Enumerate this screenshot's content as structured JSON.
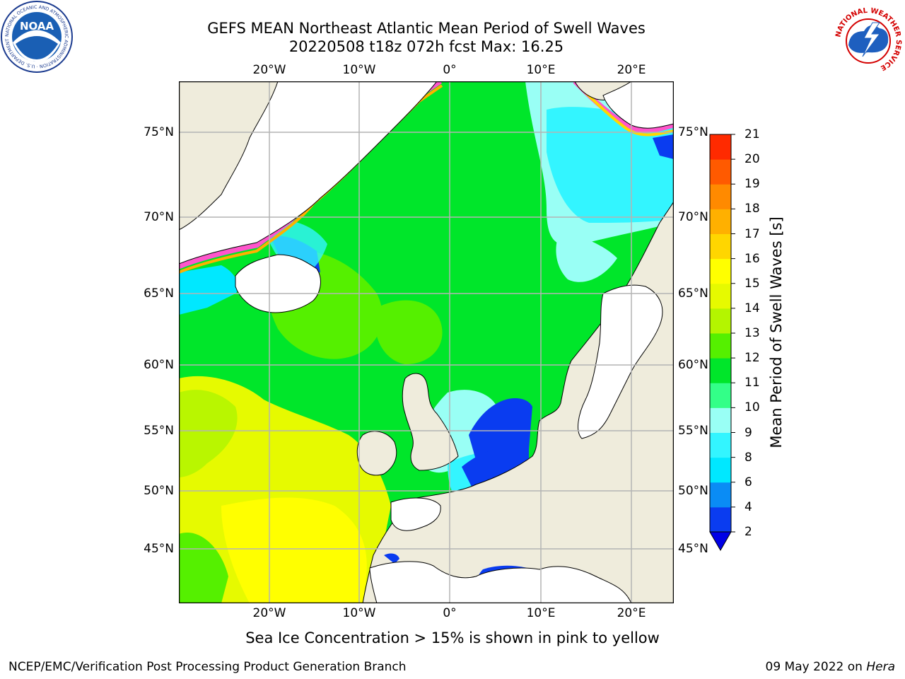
{
  "title_line1": "GEFS MEAN Northeast Atlantic Mean Period of Swell Waves",
  "title_line2": "20220508 t18z 072h fcst   Max: 16.25",
  "lon_labels": [
    "20°W",
    "10°W",
    "0°",
    "10°E",
    "20°E"
  ],
  "lat_labels": [
    "75°N",
    "70°N",
    "65°N",
    "60°N",
    "55°N",
    "50°N",
    "45°N"
  ],
  "colorbar": {
    "label": "Mean Period of Swell Waves [s]",
    "ticks": [
      "2",
      "4",
      "6",
      "8",
      "9",
      "10",
      "11",
      "12",
      "13",
      "14",
      "15",
      "16",
      "17",
      "18",
      "19",
      "20",
      "21"
    ],
    "colors": [
      "#0a3cf0",
      "#0a8cf5",
      "#00e8ff",
      "#33f5ff",
      "#99fff5",
      "#33ff88",
      "#00e62a",
      "#55f000",
      "#b4f500",
      "#e6fa00",
      "#ffff00",
      "#ffd600",
      "#ffb000",
      "#ff8a00",
      "#ff5a00",
      "#ff2a00"
    ],
    "extend_color": "#0000e6"
  },
  "footnote": "Sea Ice Concentration > 15% is shown in pink to yellow",
  "credit": "NCEP/EMC/Verification Post Processing Product Generation Branch",
  "date_text": "09 May 2022 on",
  "host": "Hera",
  "logos": {
    "noaa_text": "NOAA",
    "noaa_ring": "NATIONAL OCEANIC AND ATMOSPHERIC ADMINISTRATION · U.S. DEPARTMENT OF COMMERCE ·",
    "nws_ring": "NATIONAL WEATHER SERVICE"
  },
  "colors": {
    "land": "#efecdc",
    "ice_white": "#ffffff",
    "grid": "#b4b4b4"
  }
}
